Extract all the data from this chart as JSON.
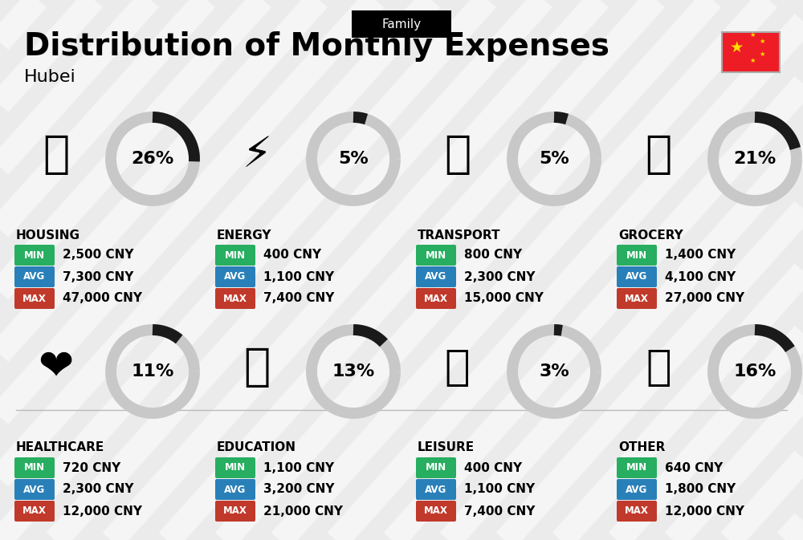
{
  "title": "Distribution of Monthly Expenses",
  "subtitle": "Hubei",
  "category_label": "Family",
  "bg_color": "#ebebeb",
  "categories": [
    {
      "name": "HOUSING",
      "pct": 26,
      "min": "2,500 CNY",
      "avg": "7,300 CNY",
      "max": "47,000 CNY",
      "emoji": "🏙",
      "row": 0,
      "col": 0
    },
    {
      "name": "ENERGY",
      "pct": 5,
      "min": "400 CNY",
      "avg": "1,100 CNY",
      "max": "7,400 CNY",
      "emoji": "⚡",
      "row": 0,
      "col": 1
    },
    {
      "name": "TRANSPORT",
      "pct": 5,
      "min": "800 CNY",
      "avg": "2,300 CNY",
      "max": "15,000 CNY",
      "emoji": "🚌",
      "row": 0,
      "col": 2
    },
    {
      "name": "GROCERY",
      "pct": 21,
      "min": "1,400 CNY",
      "avg": "4,100 CNY",
      "max": "27,000 CNY",
      "emoji": "🛍",
      "row": 0,
      "col": 3
    },
    {
      "name": "HEALTHCARE",
      "pct": 11,
      "min": "720 CNY",
      "avg": "2,300 CNY",
      "max": "12,000 CNY",
      "emoji": "❤",
      "row": 1,
      "col": 0
    },
    {
      "name": "EDUCATION",
      "pct": 13,
      "min": "1,100 CNY",
      "avg": "3,200 CNY",
      "max": "21,000 CNY",
      "emoji": "🎓",
      "row": 1,
      "col": 1
    },
    {
      "name": "LEISURE",
      "pct": 3,
      "min": "400 CNY",
      "avg": "1,100 CNY",
      "max": "7,400 CNY",
      "emoji": "🛍",
      "row": 1,
      "col": 2
    },
    {
      "name": "OTHER",
      "pct": 16,
      "min": "640 CNY",
      "avg": "1,800 CNY",
      "max": "12,000 CNY",
      "emoji": "👜",
      "row": 1,
      "col": 3
    }
  ],
  "min_color": "#27ae60",
  "avg_color": "#2980b9",
  "max_color": "#c0392b",
  "dark_arc_color": "#1a1a1a",
  "light_arc_color": "#c8c8c8",
  "arc_linewidth": 10,
  "stripe_color": "#ffffff",
  "stripe_alpha": 0.55,
  "stripe_linewidth": 22
}
